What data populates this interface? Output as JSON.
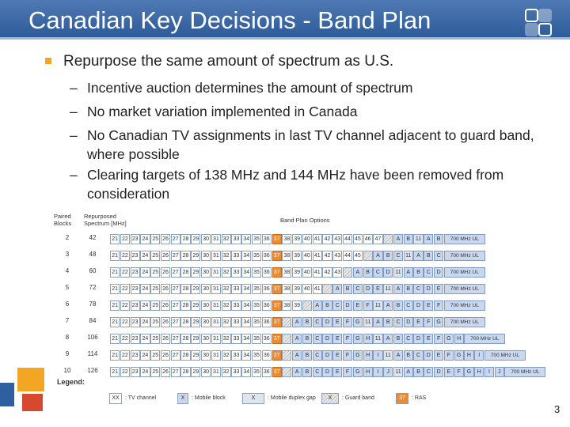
{
  "slide": {
    "title": "Canadian Key Decisions - Band Plan",
    "main_bullet": "Repurpose the same amount of spectrum as U.S.",
    "sub_bullets": [
      "Incentive auction determines the amount of spectrum",
      "No market variation implemented in Canada",
      "No Canadian TV assignments in last TV channel adjacent to guard band, where possible",
      "Clearing targets of 138 MHz and 144 MHz have been removed from consideration"
    ],
    "dash": "–",
    "page_number": "3"
  },
  "band_plan": {
    "col_paired_blocks": "Paired Blocks",
    "col_repurposed": "Repurposed Spectrum [MHz]",
    "col_options": "Band Plan Options",
    "rows": [
      {
        "blocks": "2",
        "spectrum": "42"
      },
      {
        "blocks": "3",
        "spectrum": "48"
      },
      {
        "blocks": "4",
        "spectrum": "60"
      },
      {
        "blocks": "5",
        "spectrum": "72"
      },
      {
        "blocks": "6",
        "spectrum": "78"
      },
      {
        "blocks": "7",
        "spectrum": "84"
      },
      {
        "blocks": "8",
        "spectrum": "106"
      },
      {
        "blocks": "9",
        "spectrum": "114"
      },
      {
        "blocks": "10",
        "spectrum": "126"
      }
    ],
    "ul_label": "700 MHz UL"
  },
  "legend": {
    "title": "Legend:",
    "tv_sample": "XX",
    "tv_label": ": TV channel",
    "mobile_sample": "X",
    "mobile_label": ": Mobile block",
    "duplex_sample": "X",
    "duplex_label": ": Mobile duplex gap",
    "guard_sample": "X",
    "guard_label": ": Guard band",
    "ras_sample": "37",
    "ras_label": ": RAS"
  },
  "colors": {
    "title_bar": "#3b6aa8",
    "ras": "#f08a2c",
    "mobile": "#c9d8ee",
    "bullet": "#f2a623"
  }
}
